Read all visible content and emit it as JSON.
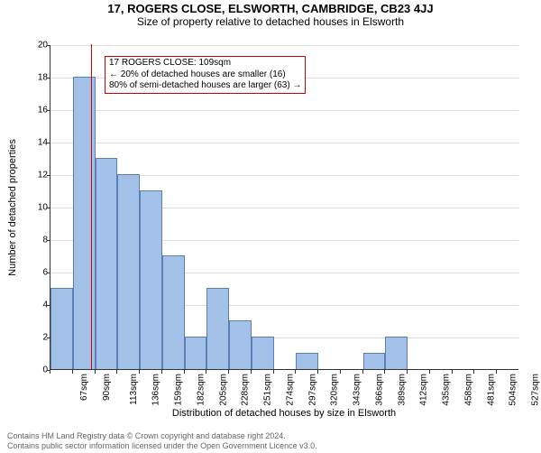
{
  "title": "17, ROGERS CLOSE, ELSWORTH, CAMBRIDGE, CB23 4JJ",
  "subtitle": "Size of property relative to detached houses in Elsworth",
  "chart": {
    "type": "histogram",
    "x_categories": [
      "67sqm",
      "90sqm",
      "113sqm",
      "136sqm",
      "159sqm",
      "182sqm",
      "205sqm",
      "228sqm",
      "251sqm",
      "274sqm",
      "297sqm",
      "320sqm",
      "343sqm",
      "366sqm",
      "389sqm",
      "412sqm",
      "435sqm",
      "458sqm",
      "481sqm",
      "504sqm",
      "527sqm"
    ],
    "values": [
      5,
      18,
      13,
      12,
      11,
      7,
      2,
      5,
      3,
      2,
      0,
      1,
      0,
      0,
      1,
      2,
      0,
      0,
      0,
      0,
      0
    ],
    "bar_color": "#a3c0e8",
    "bar_border_color": "#5b7fb5",
    "background_color": "#ffffff",
    "grid_color": "#dddddd",
    "axis_color": "#333333",
    "label_fontsize": 11,
    "tick_fontsize": 10,
    "ylim": [
      0,
      20
    ],
    "ytick_step": 2,
    "marker": {
      "x_value_sqm": 109,
      "color": "#cc0000",
      "width": 1
    },
    "annotation": {
      "lines": [
        "17 ROGERS CLOSE: 109sqm",
        "← 20% of detached houses are smaller (16)",
        "80% of semi-detached houses are larger (63) →"
      ],
      "border_color": "#cc0000",
      "fontsize": 10
    },
    "ylabel": "Number of detached properties",
    "xlabel": "Distribution of detached houses by size in Elsworth"
  },
  "footer": {
    "line1": "Contains HM Land Registry data © Crown copyright and database right 2024.",
    "line2": "Contains public sector information licensed under the Open Government Licence v3.0.",
    "color": "#666666",
    "fontsize": 9
  },
  "title_fontsize": 13,
  "subtitle_fontsize": 12
}
